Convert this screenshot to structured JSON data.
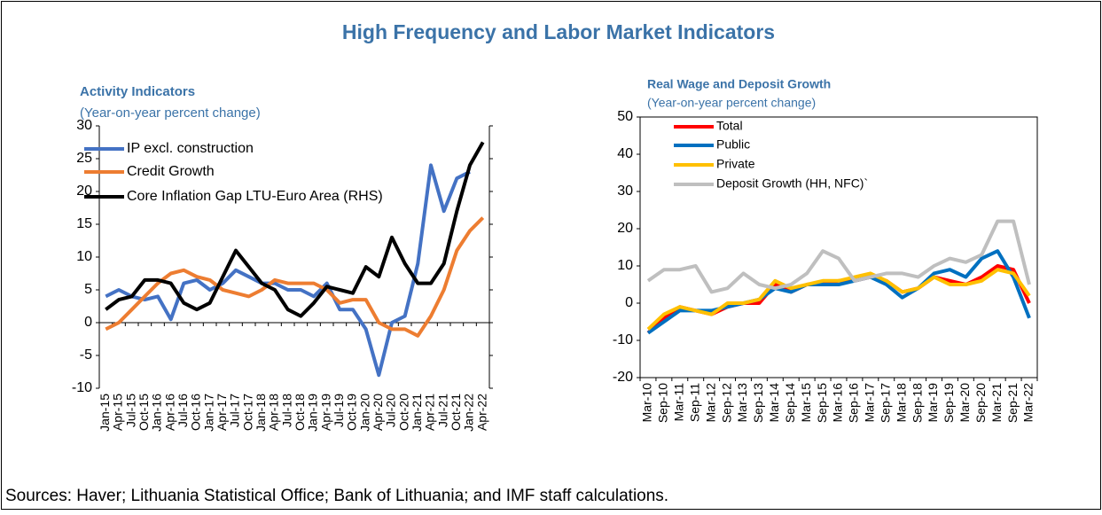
{
  "title": "High Frequency and Labor Market Indicators",
  "source": "Sources: Haver; Lithuania Statistical Office; Bank of Lithuania; and IMF staff calculations.",
  "chart_data": [
    {
      "type": "line",
      "title": "Activity Indicators",
      "subtitle": "(Year-on-year percent change)",
      "categories": [
        "Jan-15",
        "Apr-15",
        "Jul-15",
        "Oct-15",
        "Jan-16",
        "Apr-16",
        "Jul-16",
        "Oct-16",
        "Jan-17",
        "Apr-17",
        "Jul-17",
        "Oct-17",
        "Jan-18",
        "Apr-18",
        "Jul-18",
        "Oct-18",
        "Jan-19",
        "Apr-19",
        "Jul-19",
        "Oct-19",
        "Jan-20",
        "Apr-20",
        "Jul-20",
        "Oct-20",
        "Jan-21",
        "Apr-21",
        "Jul-21",
        "Oct-21",
        "Jan-22",
        "Apr-22"
      ],
      "series": [
        {
          "name": "IP excl. construction",
          "color": "#4472c4",
          "values": [
            4,
            5,
            4,
            3.5,
            4,
            0.5,
            6,
            6.5,
            5,
            6,
            8,
            7,
            6,
            6,
            5,
            5,
            4,
            6,
            2,
            2,
            -1,
            -8,
            0,
            1,
            9,
            24,
            17,
            22,
            23,
            null
          ]
        },
        {
          "name": "Credit Growth",
          "color": "#ed7d31",
          "values": [
            -1,
            0,
            2,
            4,
            6,
            7.5,
            8,
            7,
            6.5,
            5,
            4.5,
            4,
            5,
            6.5,
            6,
            6,
            6,
            5,
            3,
            3.5,
            3.5,
            0,
            -1,
            -1,
            -2,
            1,
            5,
            11,
            14,
            16
          ]
        },
        {
          "name": "Core Inflation Gap LTU-Euro Area (RHS)",
          "color": "#000000",
          "values": [
            2,
            3.5,
            4,
            6.5,
            6.5,
            6,
            3,
            2,
            3,
            7,
            11,
            8.5,
            6,
            5,
            2,
            1,
            3,
            5.5,
            5,
            4.5,
            8.5,
            7,
            13,
            9,
            6,
            6,
            9,
            17,
            24,
            27.5
          ]
        }
      ],
      "ylim": [
        -10,
        30
      ],
      "yticks": [
        -10,
        -5,
        0,
        5,
        10,
        15,
        20,
        25,
        30
      ],
      "grid": false
    },
    {
      "type": "line",
      "title": "Real Wage and Deposit Growth",
      "subtitle": "(Year-on-year percent change)",
      "categories": [
        "Mar-10",
        "Sep-10",
        "Mar-11",
        "Sep-11",
        "Mar-12",
        "Sep-12",
        "Mar-13",
        "Sep-13",
        "Mar-14",
        "Sep-14",
        "Mar-15",
        "Sep-15",
        "Mar-16",
        "Sep-16",
        "Mar-17",
        "Sep-17",
        "Mar-18",
        "Sep-18",
        "Mar-19",
        "Sep-19",
        "Mar-20",
        "Sep-20",
        "Mar-21",
        "Sep-21",
        "Mar-22"
      ],
      "series": [
        {
          "name": "Total",
          "color": "#ff0000",
          "values": [
            -8,
            -4,
            -1,
            -2,
            -3,
            -1,
            0,
            0,
            5,
            3,
            5,
            5.5,
            6,
            6,
            7,
            6,
            3,
            4,
            7,
            6,
            5,
            7,
            10,
            9,
            0
          ]
        },
        {
          "name": "Public",
          "color": "#0070c0",
          "values": [
            -8,
            -5,
            -2,
            -2,
            -2,
            -1,
            0,
            1,
            4,
            3,
            5,
            5,
            5,
            6,
            7,
            5,
            1.5,
            4,
            8,
            9,
            7,
            12,
            14,
            7,
            -4
          ]
        },
        {
          "name": "Private",
          "color": "#ffc000",
          "values": [
            -7,
            -3,
            -1,
            -2,
            -3,
            0,
            0,
            1,
            6,
            4,
            5,
            6,
            6,
            7,
            8,
            6,
            3,
            4,
            7,
            5,
            5,
            6,
            9,
            8,
            2
          ]
        },
        {
          "name": "Deposit Growth (HH, NFC)`",
          "color": "#bfbfbf",
          "values": [
            6,
            9,
            9,
            10,
            3,
            4,
            8,
            5,
            4,
            5,
            8,
            14,
            12,
            6,
            7,
            8,
            8,
            7,
            10,
            12,
            11,
            13,
            22,
            22,
            5
          ]
        }
      ],
      "ylim": [
        -20,
        50
      ],
      "yticks": [
        -20,
        -10,
        0,
        10,
        20,
        30,
        40,
        50
      ],
      "grid": false
    }
  ]
}
